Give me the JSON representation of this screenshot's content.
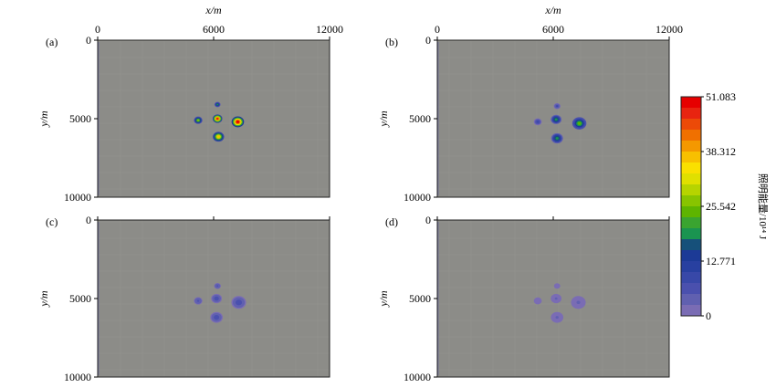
{
  "chart_data": {
    "type": "heatmap",
    "x_axis_label": "x/m",
    "y_axis_label": "y/m",
    "xlim": [
      0,
      12000
    ],
    "ylim": [
      0,
      10000
    ],
    "x_ticks": [
      0,
      6000,
      12000
    ],
    "y_ticks": [
      0,
      5000,
      10000
    ],
    "y_inverted": true,
    "background_color": "#8c8c88",
    "panels": [
      {
        "label": "(a)",
        "blobs": [
          {
            "x": 6200,
            "y": 4100,
            "size": 0.55,
            "peak": 20
          },
          {
            "x": 5200,
            "y": 5100,
            "size": 0.75,
            "peak": 26
          },
          {
            "x": 6200,
            "y": 5000,
            "size": 0.85,
            "peak": 48
          },
          {
            "x": 7250,
            "y": 5200,
            "size": 1.1,
            "peak": 51.083
          },
          {
            "x": 6250,
            "y": 6150,
            "size": 1.0,
            "peak": 36
          }
        ]
      },
      {
        "label": "(b)",
        "blobs": [
          {
            "x": 6200,
            "y": 4200,
            "size": 0.6,
            "peak": 8
          },
          {
            "x": 5200,
            "y": 5200,
            "size": 0.7,
            "peak": 9
          },
          {
            "x": 6150,
            "y": 5050,
            "size": 0.95,
            "peak": 19
          },
          {
            "x": 7350,
            "y": 5300,
            "size": 1.25,
            "peak": 23
          },
          {
            "x": 6200,
            "y": 6250,
            "size": 1.05,
            "peak": 19
          }
        ]
      },
      {
        "label": "(c)",
        "blobs": [
          {
            "x": 6200,
            "y": 4200,
            "size": 0.6,
            "peak": 6
          },
          {
            "x": 5200,
            "y": 5150,
            "size": 0.75,
            "peak": 6
          },
          {
            "x": 6150,
            "y": 5000,
            "size": 0.95,
            "peak": 7
          },
          {
            "x": 7300,
            "y": 5250,
            "size": 1.3,
            "peak": 7
          },
          {
            "x": 6150,
            "y": 6200,
            "size": 1.1,
            "peak": 7
          }
        ]
      },
      {
        "label": "(d)",
        "blobs": [
          {
            "x": 6200,
            "y": 4200,
            "size": 0.55,
            "peak": 2
          },
          {
            "x": 5200,
            "y": 5150,
            "size": 0.7,
            "peak": 2
          },
          {
            "x": 6150,
            "y": 5000,
            "size": 0.95,
            "peak": 3
          },
          {
            "x": 7300,
            "y": 5250,
            "size": 1.3,
            "peak": 3
          },
          {
            "x": 6200,
            "y": 6200,
            "size": 1.1,
            "peak": 3
          }
        ]
      }
    ],
    "colorbar": {
      "min": 0,
      "max": 51.083,
      "tick_labels": [
        "51.083",
        "38.312",
        "25.542",
        "12.771",
        "0"
      ],
      "title": "照明能量/10¹⁴ J",
      "colors": [
        "#e60000",
        "#e82410",
        "#ec4a08",
        "#f07000",
        "#f49800",
        "#f8c000",
        "#fae000",
        "#e0e000",
        "#b6d400",
        "#88c400",
        "#5eb400",
        "#3aa430",
        "#1a9450",
        "#16507a",
        "#1c3a96",
        "#2840a0",
        "#3848a8",
        "#4a50ae",
        "#6060b0",
        "#7a6cb4"
      ]
    }
  }
}
